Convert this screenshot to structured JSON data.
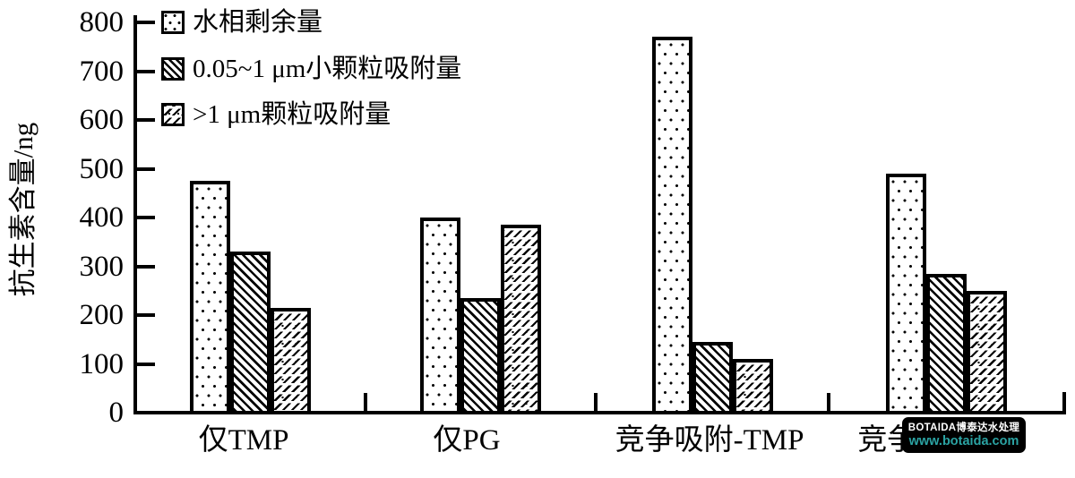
{
  "chart_data": {
    "type": "bar",
    "title": "",
    "ylabel": "抗生素含量/ng",
    "xlabel": "",
    "categories": [
      "仅TMP",
      "仅PG",
      "竞争吸附-TMP",
      "竞争吸附-PG"
    ],
    "series": [
      {
        "name": "水相剩余量",
        "pattern": "dots",
        "values": [
          475,
          400,
          770,
          490
        ]
      },
      {
        "name": "0.05~1 μm小颗粒吸附量",
        "pattern": "dense-diagonal-hatch",
        "values": [
          330,
          235,
          145,
          285
        ]
      },
      {
        "name": ">1 μm颗粒吸附量",
        "pattern": "dashed-diagonal-hatch",
        "values": [
          215,
          385,
          110,
          250
        ]
      }
    ],
    "ylim": [
      0,
      800
    ],
    "yticks": [
      0,
      100,
      200,
      300,
      400,
      500,
      600,
      700,
      800
    ],
    "grid": false,
    "legend_position": "upper-left",
    "ink_color": "#000000",
    "background_color": "#ffffff"
  },
  "watermark": {
    "line1": "BOTAIDA博泰达水处理",
    "line2": "www.botaida.com",
    "bg_color": "#000000",
    "line1_color": "#ffffff",
    "line2_color": "#2ba3a3"
  }
}
